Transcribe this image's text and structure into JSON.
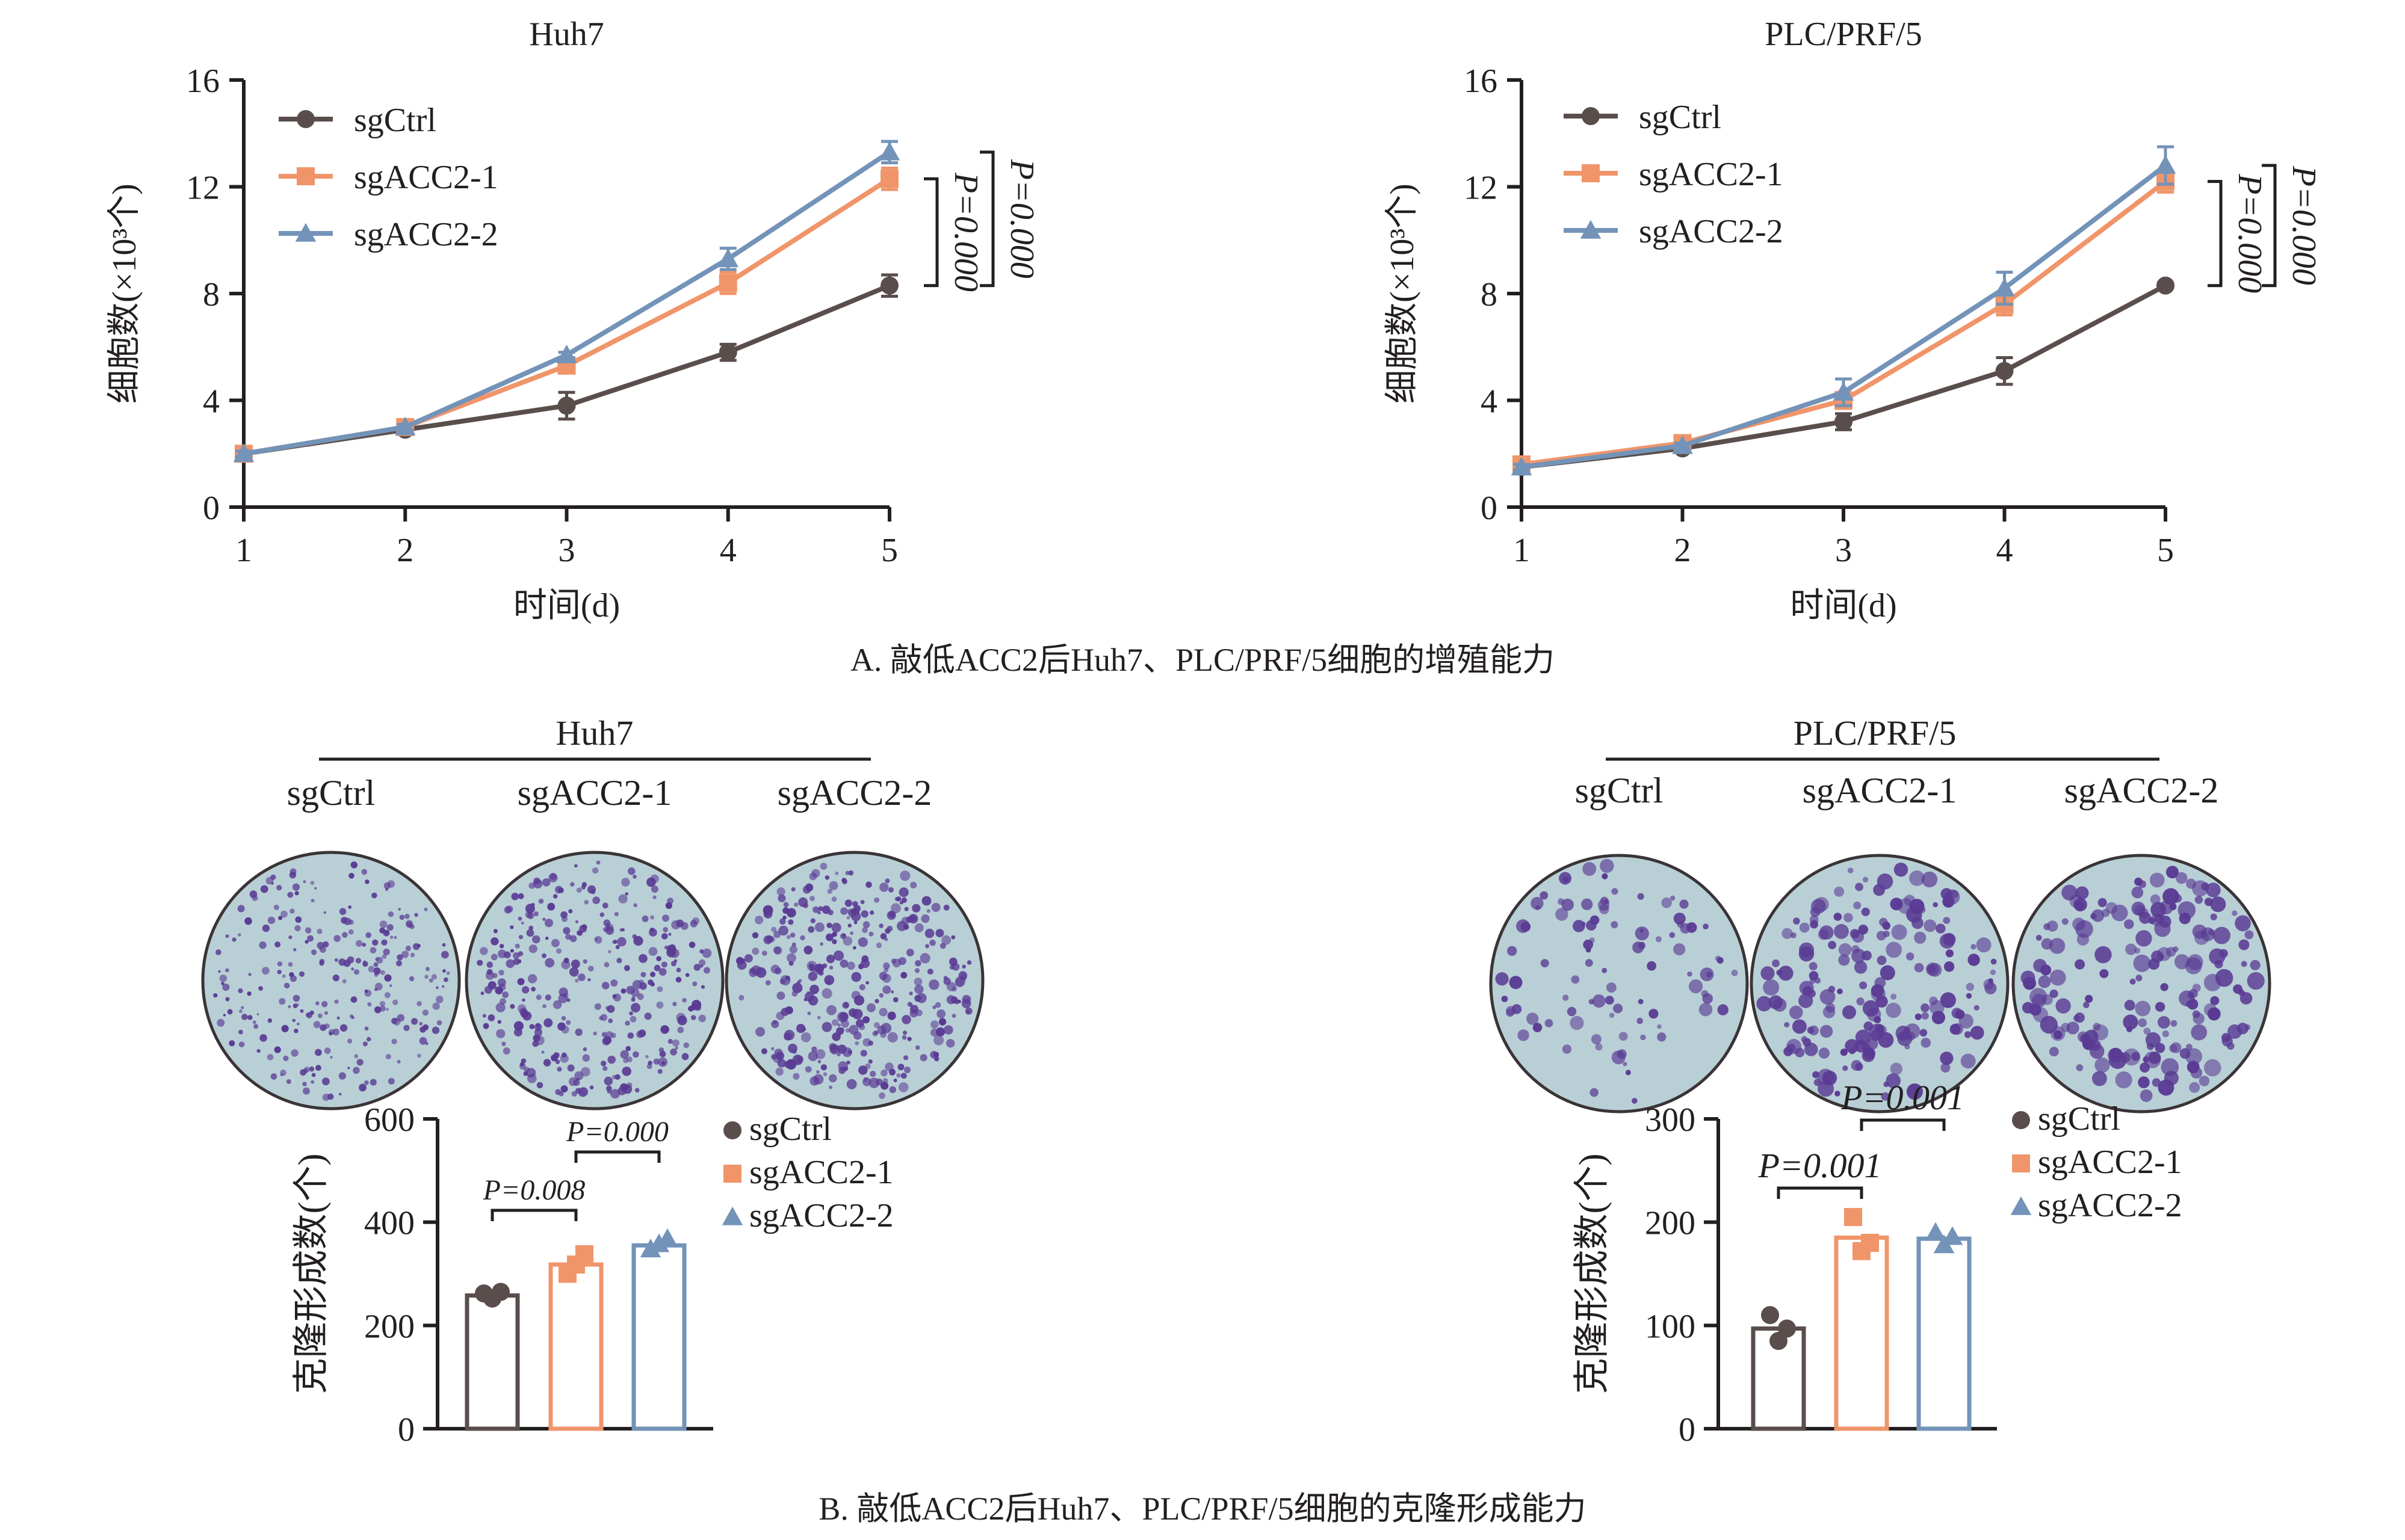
{
  "colors": {
    "axis": "#231f20",
    "sgCtrl": "#5a4e4c",
    "sgACC2_1": "#f0956a",
    "sgACC2_2": "#7393b8",
    "plate_bg": "#b9cfd6",
    "plate_rim": "#3a3436",
    "colony": "#5a3b94"
  },
  "captions": {
    "a": "A. 敲低ACC2后Huh7、PLC/PRF/5细胞的增殖能力",
    "b": "B. 敲低ACC2后Huh7、PLC/PRF/5细胞的克隆形成能力"
  },
  "photos": [
    {
      "cell_line": "Huh7",
      "labels": [
        "sgCtrl",
        "sgACC2-1",
        "sgACC2-2"
      ],
      "density": [
        260,
        330,
        360
      ],
      "colony_size": [
        1.0,
        1.25,
        1.35
      ]
    },
    {
      "cell_line": "PLC/PRF/5",
      "labels": [
        "sgCtrl",
        "sgACC2-1",
        "sgACC2-2"
      ],
      "density": [
        95,
        185,
        185
      ],
      "colony_size": [
        1.8,
        2.1,
        2.3
      ]
    }
  ],
  "chart_data": [
    {
      "type": "line",
      "title": "Huh7",
      "xlabel": "时间(d)",
      "ylabel": "细胞数(×10³个)",
      "x": [
        1,
        2,
        3,
        4,
        5
      ],
      "xlim": [
        1,
        5
      ],
      "ylim": [
        0,
        16
      ],
      "yticks": [
        0,
        4,
        8,
        12,
        16
      ],
      "series": [
        {
          "name": "sgCtrl",
          "marker": "circle",
          "values": [
            2.0,
            2.9,
            3.8,
            5.8,
            8.3
          ],
          "errors": [
            0.1,
            0.1,
            0.5,
            0.3,
            0.4
          ]
        },
        {
          "name": "sgACC2-1",
          "marker": "square",
          "values": [
            2.0,
            3.0,
            5.3,
            8.4,
            12.3
          ],
          "errors": [
            0.1,
            0.1,
            0.2,
            0.4,
            0.4
          ]
        },
        {
          "name": "sgACC2-2",
          "marker": "triangle",
          "values": [
            2.0,
            3.0,
            5.7,
            9.3,
            13.3
          ],
          "errors": [
            0.1,
            0.1,
            0.1,
            0.4,
            0.4
          ]
        }
      ],
      "legend": "top-left",
      "annotations": [
        {
          "text": "P=0.000",
          "from": 8.3,
          "to": 12.3
        },
        {
          "text": "P=0.000",
          "from": 8.3,
          "to": 13.3
        }
      ]
    },
    {
      "type": "line",
      "title": "PLC/PRF/5",
      "xlabel": "时间(d)",
      "ylabel": "细胞数(×10³个)",
      "x": [
        1,
        2,
        3,
        4,
        5
      ],
      "xlim": [
        1,
        5
      ],
      "ylim": [
        0,
        16
      ],
      "yticks": [
        0,
        4,
        8,
        12,
        16
      ],
      "series": [
        {
          "name": "sgCtrl",
          "marker": "circle",
          "values": [
            1.5,
            2.2,
            3.2,
            5.1,
            8.3
          ],
          "errors": [
            0.1,
            0.1,
            0.3,
            0.5,
            0.1
          ]
        },
        {
          "name": "sgACC2-1",
          "marker": "square",
          "values": [
            1.6,
            2.4,
            4.0,
            7.6,
            12.2
          ],
          "errors": [
            0.1,
            0.1,
            0.3,
            0.4,
            0.4
          ]
        },
        {
          "name": "sgACC2-2",
          "marker": "triangle",
          "values": [
            1.5,
            2.3,
            4.3,
            8.2,
            12.8
          ],
          "errors": [
            0.1,
            0.1,
            0.5,
            0.6,
            0.7
          ]
        }
      ],
      "legend": "top-left",
      "annotations": [
        {
          "text": "P=0.000",
          "from": 8.3,
          "to": 12.2
        },
        {
          "text": "P=0.000",
          "from": 8.3,
          "to": 12.8
        }
      ]
    },
    {
      "type": "bar",
      "title": "Huh7",
      "xlabel": "",
      "ylabel": "克隆形成数(个)",
      "categories": [
        "sgCtrl",
        "sgACC2-1",
        "sgACC2-2"
      ],
      "ylim": [
        0,
        600
      ],
      "yticks": [
        0,
        200,
        400,
        600
      ],
      "values": [
        258,
        318,
        355
      ],
      "points": [
        [
          262,
          252,
          265
        ],
        [
          300,
          318,
          338
        ],
        [
          348,
          358,
          368
        ]
      ],
      "legend": "top-right",
      "annotations": [
        {
          "text": "P=0.008",
          "from": 0,
          "to": 1
        },
        {
          "text": "P=0.000",
          "from": 1,
          "to": 2
        }
      ]
    },
    {
      "type": "bar",
      "title": "PLC/PRF/5",
      "xlabel": "",
      "ylabel": "克隆形成数(个)",
      "categories": [
        "sgCtrl",
        "sgACC2-1",
        "sgACC2-2"
      ],
      "ylim": [
        0,
        300
      ],
      "yticks": [
        0,
        100,
        200,
        300
      ],
      "values": [
        97,
        185,
        184
      ],
      "points": [
        [
          110,
          85,
          97
        ],
        [
          205,
          172,
          180
        ],
        [
          190,
          178,
          186
        ]
      ],
      "legend": "top-right",
      "annotations": [
        {
          "text": "P=0.001",
          "from": 0,
          "to": 1
        },
        {
          "text": "P=0.001",
          "from": 1,
          "to": 2
        }
      ]
    }
  ]
}
